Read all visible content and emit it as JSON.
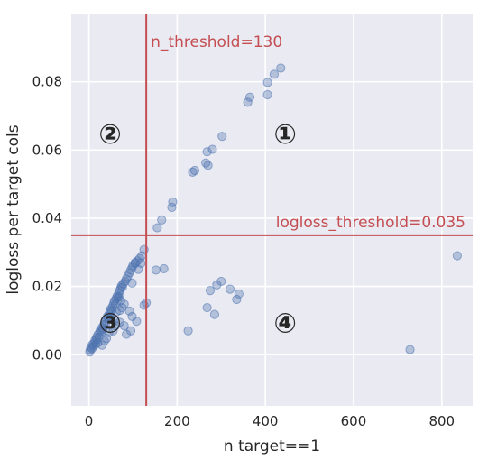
{
  "chart_data": {
    "type": "scatter",
    "xlabel": "n target==1",
    "ylabel": "logloss per target cols",
    "xlim": [
      -40,
      870
    ],
    "ylim": [
      -0.015,
      0.1
    ],
    "xticks": [
      0,
      200,
      400,
      600,
      800
    ],
    "xtick_labels": [
      "0",
      "200",
      "400",
      "600",
      "800"
    ],
    "yticks": [
      0.0,
      0.02,
      0.04,
      0.06,
      0.08
    ],
    "ytick_labels": [
      "0.00",
      "0.02",
      "0.04",
      "0.06",
      "0.08"
    ],
    "grid": true,
    "marker_color": "#4c72b0",
    "background_color": "#eaeaf2",
    "threshold_color": "#c44e52",
    "thresholds": {
      "vertical": {
        "x": 130,
        "label": "n_threshold=130"
      },
      "horizontal": {
        "y": 0.035,
        "label": "logloss_threshold=0.035"
      }
    },
    "quadrant_labels": [
      {
        "text": "①",
        "x": 445,
        "y": 0.0648
      },
      {
        "text": "②",
        "x": 48,
        "y": 0.0648
      },
      {
        "text": "③",
        "x": 48,
        "y": 0.0095
      },
      {
        "text": "④",
        "x": 445,
        "y": 0.0095
      }
    ],
    "points": [
      [
        2,
        0.0008
      ],
      [
        3,
        0.0015
      ],
      [
        5,
        0.0022
      ],
      [
        7,
        0.0018
      ],
      [
        8,
        0.003
      ],
      [
        10,
        0.0025
      ],
      [
        12,
        0.0035
      ],
      [
        14,
        0.0042
      ],
      [
        15,
        0.003
      ],
      [
        17,
        0.005
      ],
      [
        18,
        0.0045
      ],
      [
        20,
        0.0058
      ],
      [
        22,
        0.0052
      ],
      [
        24,
        0.0065
      ],
      [
        26,
        0.0072
      ],
      [
        28,
        0.0068
      ],
      [
        30,
        0.008
      ],
      [
        32,
        0.0075
      ],
      [
        34,
        0.0088
      ],
      [
        36,
        0.0095
      ],
      [
        38,
        0.009
      ],
      [
        40,
        0.0105
      ],
      [
        42,
        0.0112
      ],
      [
        44,
        0.0108
      ],
      [
        46,
        0.012
      ],
      [
        48,
        0.0128
      ],
      [
        50,
        0.0135
      ],
      [
        52,
        0.013
      ],
      [
        54,
        0.0142
      ],
      [
        56,
        0.015
      ],
      [
        58,
        0.0158
      ],
      [
        60,
        0.0148
      ],
      [
        62,
        0.0165
      ],
      [
        64,
        0.0172
      ],
      [
        66,
        0.0168
      ],
      [
        68,
        0.018
      ],
      [
        70,
        0.0188
      ],
      [
        72,
        0.0195
      ],
      [
        74,
        0.0202
      ],
      [
        76,
        0.0198
      ],
      [
        78,
        0.0208
      ],
      [
        82,
        0.0215
      ],
      [
        85,
        0.0222
      ],
      [
        88,
        0.023
      ],
      [
        92,
        0.024
      ],
      [
        95,
        0.0248
      ],
      [
        98,
        0.0255
      ],
      [
        100,
        0.0262
      ],
      [
        105,
        0.0268
      ],
      [
        110,
        0.0275
      ],
      [
        115,
        0.0282
      ],
      [
        120,
        0.029
      ],
      [
        125,
        0.0308
      ],
      [
        112,
        0.025
      ],
      [
        118,
        0.0268
      ],
      [
        98,
        0.021
      ],
      [
        105,
        0.027
      ],
      [
        20,
        0.0035
      ],
      [
        35,
        0.004
      ],
      [
        40,
        0.0048
      ],
      [
        55,
        0.007
      ],
      [
        45,
        0.0065
      ],
      [
        60,
        0.0085
      ],
      [
        70,
        0.0095
      ],
      [
        50,
        0.0112
      ],
      [
        62,
        0.0125
      ],
      [
        75,
        0.0138
      ],
      [
        58,
        0.0102
      ],
      [
        70,
        0.013
      ],
      [
        80,
        0.0148
      ],
      [
        68,
        0.017
      ],
      [
        72,
        0.0158
      ],
      [
        92,
        0.0128
      ],
      [
        98,
        0.0112
      ],
      [
        108,
        0.0098
      ],
      [
        95,
        0.007
      ],
      [
        80,
        0.0085
      ],
      [
        85,
        0.006
      ],
      [
        125,
        0.0145
      ],
      [
        130,
        0.0152
      ],
      [
        30,
        0.0028
      ],
      [
        152,
        0.0248
      ],
      [
        170,
        0.0252
      ],
      [
        155,
        0.0372
      ],
      [
        165,
        0.0395
      ],
      [
        188,
        0.0432
      ],
      [
        190,
        0.0448
      ],
      [
        235,
        0.0535
      ],
      [
        240,
        0.054
      ],
      [
        265,
        0.0562
      ],
      [
        270,
        0.0555
      ],
      [
        268,
        0.0595
      ],
      [
        280,
        0.0602
      ],
      [
        302,
        0.064
      ],
      [
        360,
        0.074
      ],
      [
        365,
        0.0755
      ],
      [
        405,
        0.0762
      ],
      [
        405,
        0.0798
      ],
      [
        420,
        0.0822
      ],
      [
        435,
        0.084
      ],
      [
        225,
        0.007
      ],
      [
        268,
        0.0138
      ],
      [
        285,
        0.0118
      ],
      [
        290,
        0.0205
      ],
      [
        275,
        0.0188
      ],
      [
        300,
        0.0215
      ],
      [
        320,
        0.0192
      ],
      [
        335,
        0.0162
      ],
      [
        340,
        0.0178
      ],
      [
        728,
        0.0015
      ],
      [
        835,
        0.029
      ]
    ]
  }
}
